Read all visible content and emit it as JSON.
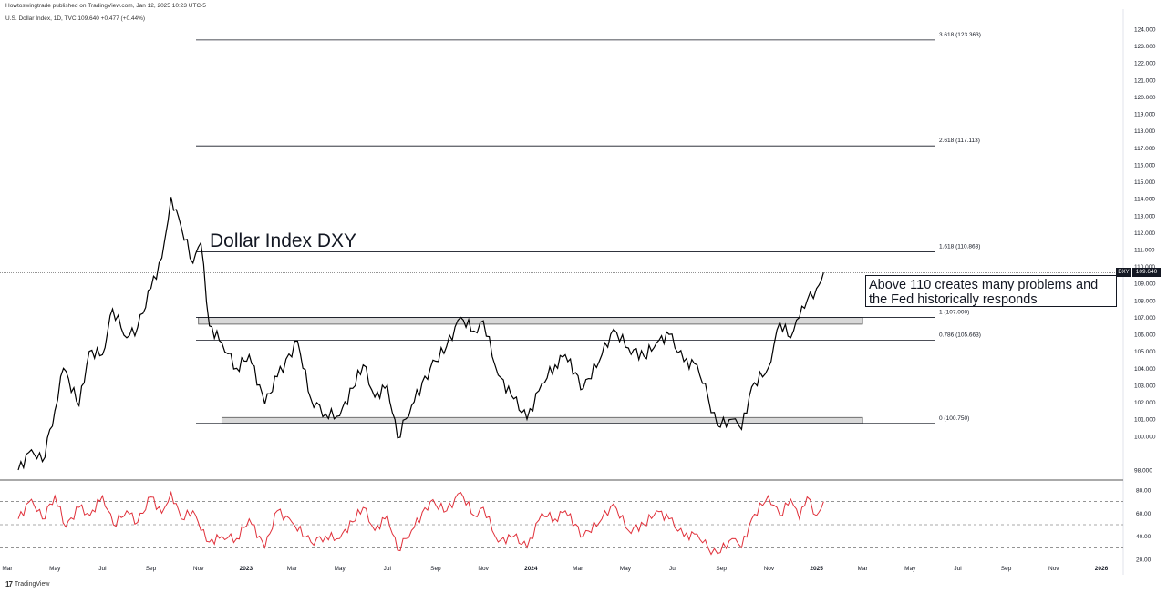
{
  "header": {
    "publisher": "Howtoswingtrade published on TradingView.com, Jan 12, 2025 10:23 UTC-5",
    "symbol_line": "U.S. Dollar Index, 1D, TVC  109.640  +0.477 (+0.44%)"
  },
  "annotations": {
    "title": "Dollar Index DXY",
    "note_line1": "Above 110 creates many problems and",
    "note_line2": "the Fed historically responds"
  },
  "last_price": {
    "symbol": "DXY",
    "value": "109.640"
  },
  "footer": {
    "brand": "TradingView"
  },
  "colors": {
    "price": "#000000",
    "rsi": "#e0303a",
    "fib": "#131722",
    "zone_fill": "#d8d8d8"
  },
  "chart_data": [
    {
      "type": "line",
      "name": "price",
      "ylim": [
        97.5,
        124.5
      ],
      "y_ticks": [
        98,
        100,
        101,
        102,
        103,
        104,
        105,
        106,
        107,
        108,
        109,
        110,
        111,
        112,
        113,
        114,
        115,
        116,
        117,
        118,
        119,
        120,
        121,
        122,
        123,
        124
      ],
      "y_tick_labels": [
        "98.000",
        "100.000",
        "101.000",
        "102.000",
        "103.000",
        "104.000",
        "105.000",
        "106.000",
        "107.000",
        "108.000",
        "109.000",
        "110.000",
        "111.000",
        "112.000",
        "113.000",
        "114.000",
        "115.000",
        "116.000",
        "117.000",
        "118.000",
        "119.000",
        "120.000",
        "121.000",
        "122.000",
        "123.000",
        "124.000"
      ],
      "x": [
        "2022-03-15",
        "2022-04-01",
        "2022-04-15",
        "2022-05-01",
        "2022-05-12",
        "2022-06-01",
        "2022-06-14",
        "2022-07-01",
        "2022-07-14",
        "2022-08-01",
        "2022-08-15",
        "2022-09-01",
        "2022-09-15",
        "2022-09-27",
        "2022-10-10",
        "2022-10-25",
        "2022-11-04",
        "2022-11-15",
        "2022-12-01",
        "2022-12-20",
        "2023-01-05",
        "2023-01-25",
        "2023-02-10",
        "2023-03-08",
        "2023-03-25",
        "2023-04-13",
        "2023-05-01",
        "2023-05-31",
        "2023-06-15",
        "2023-07-01",
        "2023-07-14",
        "2023-08-01",
        "2023-08-25",
        "2023-09-15",
        "2023-10-03",
        "2023-10-20",
        "2023-11-01",
        "2023-11-20",
        "2023-12-10",
        "2023-12-27",
        "2024-01-15",
        "2024-02-01",
        "2024-02-14",
        "2024-03-08",
        "2024-04-01",
        "2024-04-16",
        "2024-05-05",
        "2024-05-25",
        "2024-06-10",
        "2024-06-26",
        "2024-07-15",
        "2024-08-01",
        "2024-08-15",
        "2024-08-27",
        "2024-09-15",
        "2024-09-27",
        "2024-10-10",
        "2024-10-31",
        "2024-11-15",
        "2024-11-29",
        "2024-12-10",
        "2024-12-20",
        "2025-01-01",
        "2025-01-10"
      ],
      "y": [
        98.0,
        99.2,
        98.5,
        101.5,
        104.0,
        101.8,
        105.0,
        104.8,
        107.5,
        105.8,
        106.4,
        108.7,
        110.5,
        114.1,
        112.3,
        110.2,
        111.4,
        106.5,
        105.5,
        104.0,
        104.8,
        101.9,
        103.5,
        105.6,
        102.2,
        101.3,
        101.2,
        104.2,
        102.3,
        103.0,
        99.9,
        101.8,
        104.0,
        105.3,
        107.0,
        106.2,
        106.8,
        103.6,
        102.2,
        101.0,
        103.1,
        104.2,
        104.8,
        102.8,
        104.8,
        106.3,
        105.2,
        104.7,
        105.5,
        106.0,
        104.4,
        104.2,
        102.3,
        100.6,
        101.0,
        100.4,
        102.9,
        104.0,
        106.7,
        105.8,
        107.0,
        108.0,
        108.7,
        109.64
      ],
      "fib_levels": [
        {
          "ratio": "3.618",
          "value": 123.363,
          "label": "3.618 (123.363)"
        },
        {
          "ratio": "2.618",
          "value": 117.113,
          "label": "2.618 (117.113)"
        },
        {
          "ratio": "1.618",
          "value": 110.863,
          "label": "1.618 (110.863)"
        },
        {
          "ratio": "1",
          "value": 107.0,
          "label": "1 (107.000)"
        },
        {
          "ratio": "0.786",
          "value": 105.663,
          "label": "0.786 (105.663)"
        },
        {
          "ratio": "0",
          "value": 100.75,
          "label": "0 (100.750)"
        }
      ],
      "zones": [
        {
          "y_from": 106.6,
          "y_to": 107.0,
          "x_from": "2022-11-01",
          "x_to": "2025-03-01"
        },
        {
          "y_from": 100.75,
          "y_to": 101.1,
          "x_from": "2022-12-01",
          "x_to": "2025-03-01"
        }
      ]
    },
    {
      "type": "line",
      "name": "rsi",
      "ylim": [
        20,
        83
      ],
      "y_ticks": [
        20,
        40,
        60,
        80
      ],
      "y_tick_labels": [
        "20.00",
        "40.00",
        "60.00",
        "80.00"
      ],
      "guides": [
        70,
        50,
        30
      ],
      "x": [
        "2022-03-15",
        "2022-04-01",
        "2022-04-15",
        "2022-05-01",
        "2022-05-15",
        "2022-06-01",
        "2022-06-15",
        "2022-07-01",
        "2022-07-15",
        "2022-08-01",
        "2022-08-15",
        "2022-09-01",
        "2022-09-15",
        "2022-09-27",
        "2022-10-10",
        "2022-10-25",
        "2022-11-04",
        "2022-11-15",
        "2022-12-01",
        "2022-12-20",
        "2023-01-05",
        "2023-01-25",
        "2023-02-10",
        "2023-03-01",
        "2023-03-25",
        "2023-04-13",
        "2023-05-01",
        "2023-05-31",
        "2023-06-15",
        "2023-07-01",
        "2023-07-14",
        "2023-08-01",
        "2023-08-25",
        "2023-09-15",
        "2023-10-03",
        "2023-10-20",
        "2023-11-01",
        "2023-11-20",
        "2023-12-10",
        "2023-12-27",
        "2024-01-15",
        "2024-02-01",
        "2024-02-14",
        "2024-03-08",
        "2024-04-01",
        "2024-04-16",
        "2024-05-05",
        "2024-05-25",
        "2024-06-10",
        "2024-06-26",
        "2024-07-15",
        "2024-08-01",
        "2024-08-15",
        "2024-08-27",
        "2024-09-15",
        "2024-09-27",
        "2024-10-10",
        "2024-10-31",
        "2024-11-15",
        "2024-11-29",
        "2024-12-10",
        "2024-12-20",
        "2025-01-01",
        "2025-01-10"
      ],
      "y": [
        55,
        72,
        55,
        75,
        48,
        65,
        58,
        75,
        50,
        62,
        52,
        74,
        60,
        78,
        55,
        62,
        45,
        35,
        40,
        38,
        55,
        30,
        62,
        52,
        35,
        40,
        38,
        65,
        45,
        58,
        28,
        45,
        70,
        62,
        78,
        58,
        65,
        35,
        40,
        30,
        60,
        55,
        62,
        40,
        55,
        68,
        45,
        50,
        62,
        55,
        40,
        42,
        30,
        25,
        38,
        30,
        55,
        75,
        58,
        72,
        55,
        74,
        58,
        70
      ]
    }
  ],
  "x_axis": {
    "ticks": [
      "2022-03-01",
      "2022-05-01",
      "2022-07-01",
      "2022-09-01",
      "2022-11-01",
      "2023-01-01",
      "2023-03-01",
      "2023-05-01",
      "2023-07-01",
      "2023-09-01",
      "2023-11-01",
      "2024-01-01",
      "2024-03-01",
      "2024-05-01",
      "2024-07-01",
      "2024-09-01",
      "2024-11-01",
      "2025-01-01",
      "2025-03-01",
      "2025-05-01",
      "2025-07-01",
      "2025-09-01",
      "2025-11-01",
      "2026-01-01"
    ],
    "labels": [
      "Mar",
      "May",
      "Jul",
      "Sep",
      "Nov",
      "2023",
      "Mar",
      "May",
      "Jul",
      "Sep",
      "Nov",
      "2024",
      "Mar",
      "May",
      "Jul",
      "Sep",
      "Nov",
      "2025",
      "Mar",
      "May",
      "Jul",
      "Sep",
      "Nov",
      "2026"
    ],
    "bold": [
      false,
      false,
      false,
      false,
      false,
      true,
      false,
      false,
      false,
      false,
      false,
      true,
      false,
      false,
      false,
      false,
      false,
      true,
      false,
      false,
      false,
      false,
      false,
      true
    ]
  }
}
